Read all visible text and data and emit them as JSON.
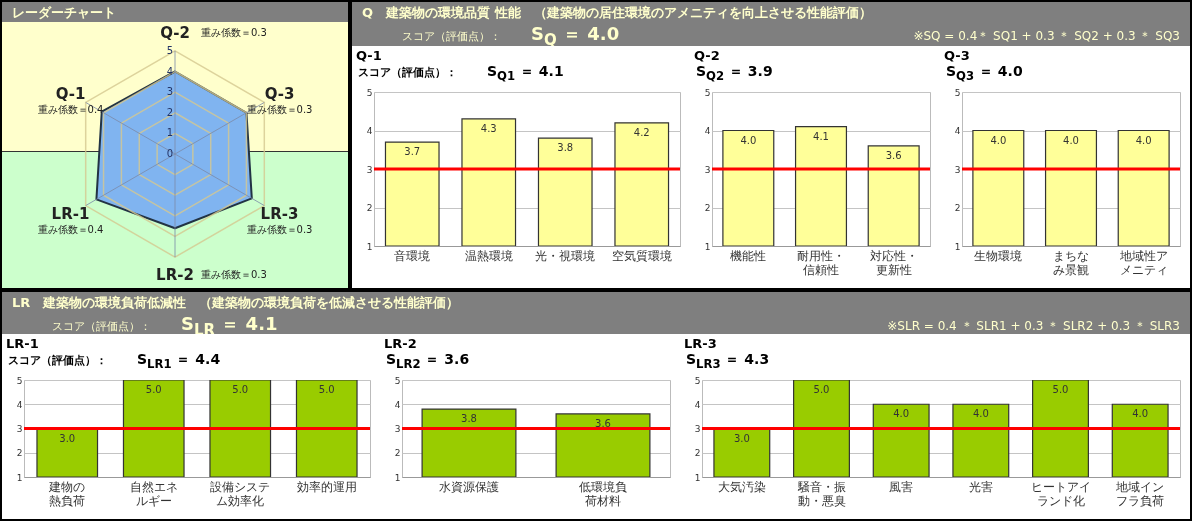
{
  "chart_data": [
    {
      "type": "radar",
      "title": "レーダーチャート",
      "categories": [
        "Q-2",
        "Q-3",
        "LR-3",
        "LR-2",
        "LR-1",
        "Q-1"
      ],
      "series": [
        {
          "color": "#80b4f0",
          "values": [
            4.0,
            4.0,
            4.3,
            3.6,
            4.4,
            4.1
          ]
        }
      ],
      "ylim": [
        0,
        5
      ],
      "yticks": [
        0,
        1,
        2,
        3,
        4,
        5
      ],
      "grid": true,
      "annotations": [
        "重み係数＝0.3",
        "重み係数＝0.3",
        "重み係数＝0.3",
        "重み係数＝0.3",
        "重み係数＝0.4",
        "重み係数＝0.4"
      ]
    },
    {
      "type": "other",
      "title": "Q　建築物の環境品質 性能　（建築物の居住環境のアメニティを向上させる性能評価）",
      "subtitle": "スコア（評価点）：",
      "annotations": [
        "S$_{Q}$ ＝ 4.0",
        "※SQ = 0.4＊ SQ1 + 0.3 ＊ SQ2 + 0.3 ＊ SQ3"
      ]
    },
    {
      "type": "bar",
      "title": "Q-1",
      "subtitle": "スコア（評価点）：",
      "annotations": [
        "S$_{Q1}$ ＝ 4.1"
      ],
      "categories": [
        "音環境",
        "温熱環境",
        "光・視環境",
        "空気質環境"
      ],
      "values": [
        3.7,
        4.3,
        3.8,
        4.2
      ],
      "value_labels": [
        "3.7",
        "4.3",
        "3.8",
        "4.2"
      ],
      "color": "#ffff99",
      "ylim": [
        1,
        5
      ],
      "yticks": [
        1,
        2,
        3,
        4,
        5
      ],
      "grid": "y",
      "ref_lines": [
        {
          "axis": "y",
          "value": 3,
          "color": "#ff0000"
        }
      ]
    },
    {
      "type": "bar",
      "title": "Q-2",
      "annotations": [
        "S$_{Q2}$ ＝ 3.9"
      ],
      "categories": [
        "機能性",
        "耐用性・信頼性",
        "対応性・更新性"
      ],
      "values": [
        4.0,
        4.1,
        3.6
      ],
      "value_labels": [
        "4.0",
        "4.1",
        "3.6"
      ],
      "color": "#ffff99",
      "ylim": [
        1,
        5
      ],
      "yticks": [
        1,
        2,
        3,
        4,
        5
      ],
      "grid": "y",
      "ref_lines": [
        {
          "axis": "y",
          "value": 3,
          "color": "#ff0000"
        }
      ]
    },
    {
      "type": "bar",
      "title": "Q-3",
      "annotations": [
        "S$_{Q3}$ ＝ 4.0"
      ],
      "categories": [
        "生物環境",
        "まちなみ景観",
        "地域性アメニティ"
      ],
      "values": [
        4.0,
        4.0,
        4.0
      ],
      "value_labels": [
        "4.0",
        "4.0",
        "4.0"
      ],
      "color": "#ffff99",
      "ylim": [
        1,
        5
      ],
      "yticks": [
        1,
        2,
        3,
        4,
        5
      ],
      "grid": "y",
      "ref_lines": [
        {
          "axis": "y",
          "value": 3,
          "color": "#ff0000"
        }
      ]
    },
    {
      "type": "other",
      "title": "LR　建築物の環境負荷低減性　（建築物の環境負荷を低減させる性能評価）",
      "subtitle": "スコア（評価点）：",
      "annotations": [
        "S$_{LR}$ ＝ 4.1",
        "※SLR = 0.4 ＊ SLR1 + 0.3 ＊ SLR2 + 0.3 ＊ SLR3"
      ]
    },
    {
      "type": "bar",
      "title": "LR-1",
      "subtitle": "スコア（評価点）：",
      "annotations": [
        "S$_{LR1}$ ＝ 4.4"
      ],
      "categories": [
        "建物の熱負荷",
        "自然エネルギー",
        "設備システム効率化",
        "効率的運用"
      ],
      "values": [
        3.0,
        5.0,
        5.0,
        5.0
      ],
      "value_labels": [
        "3.0",
        "5.0",
        "5.0",
        "5.0"
      ],
      "color": "#99cc00",
      "ylim": [
        1,
        5
      ],
      "yticks": [
        1,
        2,
        3,
        4,
        5
      ],
      "grid": "y",
      "ref_lines": [
        {
          "axis": "y",
          "value": 3,
          "color": "#ff0000"
        }
      ]
    },
    {
      "type": "bar",
      "title": "LR-2",
      "annotations": [
        "S$_{LR2}$ ＝ 3.6"
      ],
      "categories": [
        "水資源保護",
        "低環境負荷材料"
      ],
      "values": [
        3.8,
        3.6
      ],
      "value_labels": [
        "3.8",
        "3.6"
      ],
      "color": "#99cc00",
      "ylim": [
        1,
        5
      ],
      "yticks": [
        1,
        2,
        3,
        4,
        5
      ],
      "grid": "y",
      "ref_lines": [
        {
          "axis": "y",
          "value": 3,
          "color": "#ff0000"
        }
      ]
    },
    {
      "type": "bar",
      "title": "LR-3",
      "annotations": [
        "S$_{LR3}$ ＝ 4.3"
      ],
      "categories": [
        "大気汚染",
        "騒音・振動・悪臭",
        "風害",
        "光害",
        "ヒートアイランド化",
        "地域インフラ負荷"
      ],
      "values": [
        3.0,
        5.0,
        4.0,
        4.0,
        5.0,
        4.0
      ],
      "value_labels": [
        "3.0",
        "5.0",
        "4.0",
        "4.0",
        "5.0",
        "4.0"
      ],
      "color": "#99cc00",
      "ylim": [
        1,
        5
      ],
      "yticks": [
        1,
        2,
        3,
        4,
        5
      ],
      "grid": "y",
      "ref_lines": [
        {
          "axis": "y",
          "value": 3,
          "color": "#ff0000"
        }
      ]
    }
  ]
}
